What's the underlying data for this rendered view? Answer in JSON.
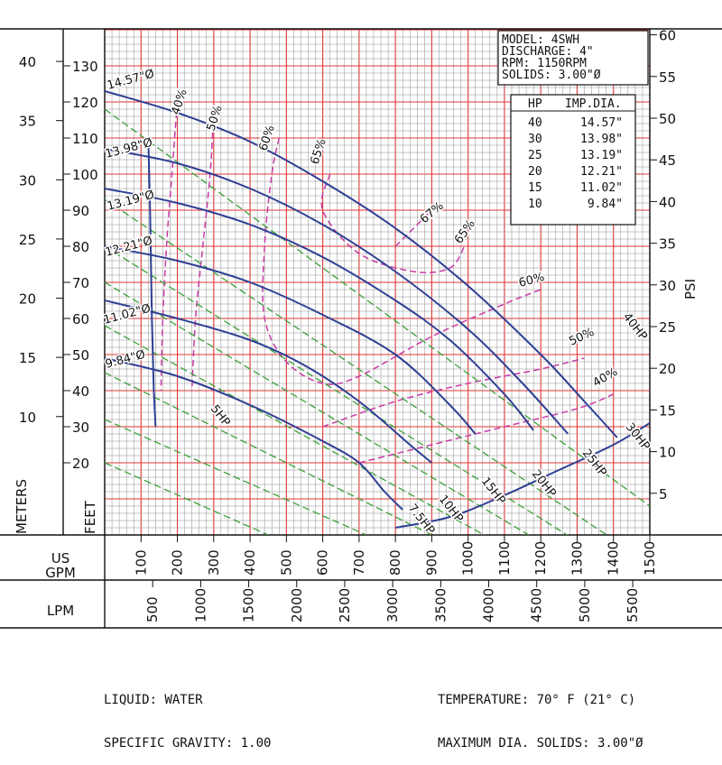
{
  "chart_data": {
    "type": "line",
    "x_axis": {
      "usgpm_label": "US GPM",
      "usgpm_range": [
        0,
        1500
      ],
      "usgpm_ticks": [
        100,
        200,
        300,
        400,
        500,
        600,
        700,
        800,
        900,
        1000,
        1100,
        1200,
        1300,
        1400,
        1500
      ],
      "lpm_label": "LPM",
      "lpm_ticks": [
        500,
        1000,
        1500,
        2000,
        2500,
        3000,
        3500,
        4000,
        4500,
        5000,
        5500
      ]
    },
    "y_axis": {
      "feet_label": "FEET",
      "feet_range": [
        0,
        140
      ],
      "feet_ticks": [
        20,
        30,
        40,
        50,
        60,
        70,
        80,
        90,
        100,
        110,
        120,
        130
      ],
      "meters_label": "METERS",
      "meters_ticks": [
        10,
        15,
        20,
        25,
        30,
        35,
        40
      ],
      "psi_label": "PSI",
      "psi_ticks": [
        5,
        10,
        15,
        20,
        25,
        30,
        35,
        40,
        45,
        50,
        55,
        60
      ]
    },
    "info_box": [
      "MODEL: 4SWH",
      "DISCHARGE: 4\"",
      "RPM: 1150RPM",
      "SOLIDS: 3.00\"Ø"
    ],
    "hp_table": {
      "headers": [
        "HP",
        "IMP.DIA."
      ],
      "rows": [
        [
          "40",
          "14.57\""
        ],
        [
          "30",
          "13.98\""
        ],
        [
          "25",
          "13.19\""
        ],
        [
          "20",
          "12.21\""
        ],
        [
          "15",
          "11.02\""
        ],
        [
          "10",
          "9.84\""
        ]
      ]
    },
    "head_curves": [
      {
        "name": "14.57\"Ø",
        "points": [
          [
            0,
            123
          ],
          [
            200,
            117
          ],
          [
            400,
            109
          ],
          [
            600,
            98
          ],
          [
            800,
            85
          ],
          [
            1000,
            69
          ],
          [
            1200,
            50
          ],
          [
            1320,
            37
          ],
          [
            1410,
            27
          ]
        ]
      },
      {
        "name": "13.98\"Ø",
        "points": [
          [
            0,
            107
          ],
          [
            200,
            103
          ],
          [
            400,
            96
          ],
          [
            600,
            86
          ],
          [
            800,
            73
          ],
          [
            1000,
            57
          ],
          [
            1150,
            42
          ],
          [
            1275,
            28
          ]
        ]
      },
      {
        "name": "13.19\"Ø",
        "points": [
          [
            0,
            96
          ],
          [
            200,
            92
          ],
          [
            400,
            86
          ],
          [
            600,
            77
          ],
          [
            800,
            65
          ],
          [
            950,
            54
          ],
          [
            1100,
            39
          ],
          [
            1180,
            29
          ]
        ]
      },
      {
        "name": "12.21\"Ø",
        "points": [
          [
            0,
            80
          ],
          [
            200,
            76
          ],
          [
            400,
            70
          ],
          [
            600,
            61
          ],
          [
            800,
            50
          ],
          [
            950,
            36
          ],
          [
            1020,
            28
          ]
        ]
      },
      {
        "name": "11.02\"Ø",
        "points": [
          [
            0,
            65
          ],
          [
            200,
            60
          ],
          [
            400,
            54
          ],
          [
            550,
            47
          ],
          [
            700,
            37
          ],
          [
            840,
            25
          ],
          [
            900,
            20
          ]
        ]
      },
      {
        "name": "9.84\"Ø",
        "points": [
          [
            0,
            49
          ],
          [
            200,
            44
          ],
          [
            400,
            36
          ],
          [
            600,
            26
          ],
          [
            700,
            20
          ],
          [
            770,
            12
          ],
          [
            820,
            7
          ]
        ]
      }
    ],
    "npsh_line": {
      "points": [
        [
          120,
          110
        ],
        [
          125,
          90
        ],
        [
          130,
          60
        ],
        [
          135,
          40
        ],
        [
          140,
          30
        ]
      ]
    },
    "system_curve": {
      "points": [
        [
          800,
          2
        ],
        [
          950,
          5
        ],
        [
          1100,
          11
        ],
        [
          1250,
          18
        ],
        [
          1400,
          25
        ],
        [
          1500,
          31
        ]
      ]
    },
    "hp_lines": [
      {
        "name": "40HP",
        "points": [
          [
            0,
            118
          ],
          [
            1500,
            8
          ]
        ]
      },
      {
        "name": "30HP",
        "points": [
          [
            0,
            93
          ],
          [
            1500,
            -8
          ]
        ]
      },
      {
        "name": "25HP",
        "points": [
          [
            0,
            80
          ],
          [
            1400,
            -8
          ]
        ]
      },
      {
        "name": "20HP",
        "points": [
          [
            0,
            70
          ],
          [
            1250,
            -5
          ]
        ]
      },
      {
        "name": "15HP",
        "points": [
          [
            0,
            58
          ],
          [
            1080,
            -2
          ]
        ]
      },
      {
        "name": "10HP",
        "points": [
          [
            0,
            45
          ],
          [
            900,
            0
          ]
        ]
      },
      {
        "name": "7.5HP",
        "points": [
          [
            0,
            32
          ],
          [
            720,
            0
          ]
        ]
      },
      {
        "name": "5HP",
        "points": [
          [
            0,
            20
          ],
          [
            450,
            0
          ]
        ]
      }
    ],
    "efficiency_curves": [
      {
        "name": "40%",
        "points": [
          [
            200,
            120
          ],
          [
            185,
            100
          ],
          [
            170,
            80
          ],
          [
            160,
            60
          ],
          [
            155,
            40
          ]
        ]
      },
      {
        "name": "50%",
        "points": [
          [
            300,
            117
          ],
          [
            290,
            100
          ],
          [
            270,
            80
          ],
          [
            250,
            60
          ],
          [
            240,
            40
          ]
        ]
      },
      {
        "name": "60%",
        "points": [
          [
            480,
            110
          ],
          [
            460,
            100
          ],
          [
            440,
            80
          ],
          [
            440,
            60
          ],
          [
            500,
            48
          ],
          [
            600,
            42
          ],
          [
            700,
            44
          ],
          [
            900,
            55
          ],
          [
            1100,
            64
          ],
          [
            1200,
            68
          ]
        ]
      },
      {
        "name": "65%",
        "points": [
          [
            620,
            100
          ],
          [
            600,
            90
          ],
          [
            700,
            78
          ],
          [
            850,
            73
          ],
          [
            950,
            74
          ],
          [
            990,
            80
          ]
        ]
      },
      {
        "name": "67%",
        "points": [
          [
            800,
            80
          ],
          [
            850,
            85
          ],
          [
            900,
            90
          ]
        ]
      },
      {
        "name": "50%",
        "points": [
          [
            600,
            30
          ],
          [
            800,
            37
          ],
          [
            1000,
            42
          ],
          [
            1200,
            46
          ],
          [
            1320,
            49
          ]
        ]
      },
      {
        "name": "40%",
        "points": [
          [
            700,
            20
          ],
          [
            900,
            25
          ],
          [
            1100,
            30
          ],
          [
            1300,
            35
          ],
          [
            1400,
            39
          ]
        ]
      }
    ],
    "efficiency_labels": [
      "40%",
      "50%",
      "60%",
      "65%",
      "67%",
      "65%",
      "60%",
      "50%",
      "40%"
    ],
    "hp_labels": [
      "40HP",
      "30HP",
      "25HP",
      "20HP",
      "15HP",
      "10HP",
      "7.5HP",
      "5HP"
    ]
  },
  "footer": {
    "left": [
      "LIQUID: WATER",
      "SPECIFIC GRAVITY: 1.00"
    ],
    "right": [
      "TEMPERATURE: 70° F (21° C)",
      "MAXIMUM DIA. SOLIDS: 3.00\"Ø"
    ]
  }
}
